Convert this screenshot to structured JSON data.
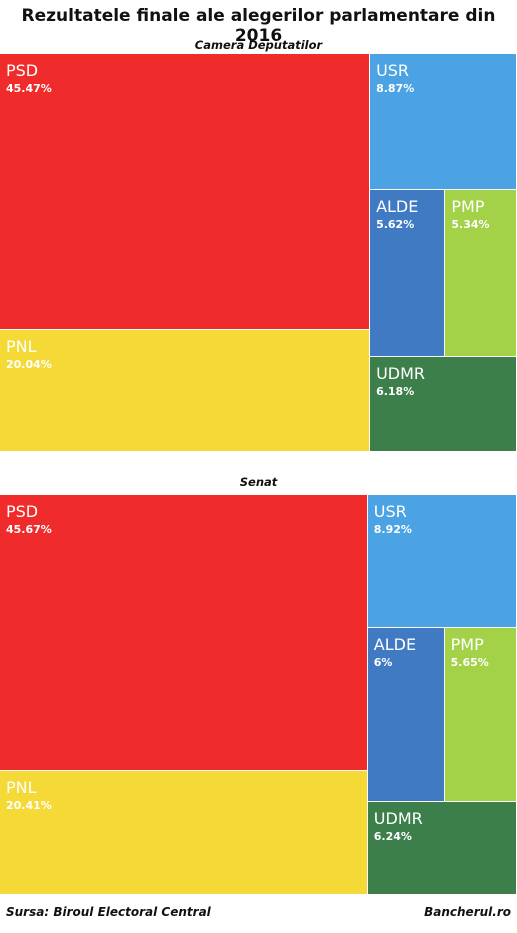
{
  "header": {
    "title": "Rezultatele finale ale alegerilor parlamentare din 2016"
  },
  "chart_data": [
    {
      "type": "treemap",
      "title": "Camera Deputatilor",
      "series": [
        {
          "name": "PSD",
          "label": "PSD",
          "value_label": "45.47%",
          "value": 45.47,
          "color": "#f02b2b"
        },
        {
          "name": "PNL",
          "label": "PNL",
          "value_label": "20.04%",
          "value": 20.04,
          "color": "#f5d936"
        },
        {
          "name": "USR",
          "label": "USR",
          "value_label": "8.87%",
          "value": 8.87,
          "color": "#4ba3e3"
        },
        {
          "name": "ALDE",
          "label": "ALDE",
          "value_label": "5.62%",
          "value": 5.62,
          "color": "#3f7ac2"
        },
        {
          "name": "PMP",
          "label": "PMP",
          "value_label": "5.34%",
          "value": 5.34,
          "color": "#a3d147"
        },
        {
          "name": "UDMR",
          "label": "UDMR",
          "value_label": "6.18%",
          "value": 6.18,
          "color": "#3d7f4b"
        }
      ]
    },
    {
      "type": "treemap",
      "title": "Senat",
      "series": [
        {
          "name": "PSD",
          "label": "PSD",
          "value_label": "45.67%",
          "value": 45.67,
          "color": "#f02b2b"
        },
        {
          "name": "PNL",
          "label": "PNL",
          "value_label": "20.41%",
          "value": 20.41,
          "color": "#f5d936"
        },
        {
          "name": "USR",
          "label": "USR",
          "value_label": "8.92%",
          "value": 8.92,
          "color": "#4ba3e3"
        },
        {
          "name": "ALDE",
          "label": "ALDE",
          "value_label": "6%",
          "value": 6,
          "color": "#3f7ac2"
        },
        {
          "name": "PMP",
          "label": "PMP",
          "value_label": "5.65%",
          "value": 5.65,
          "color": "#a3d147"
        },
        {
          "name": "UDMR",
          "label": "UDMR",
          "value_label": "6.24%",
          "value": 6.24,
          "color": "#3d7f4b"
        }
      ]
    }
  ],
  "footer": {
    "source": "Sursa: Biroul Electoral Central",
    "brand": "Bancherul.ro"
  }
}
